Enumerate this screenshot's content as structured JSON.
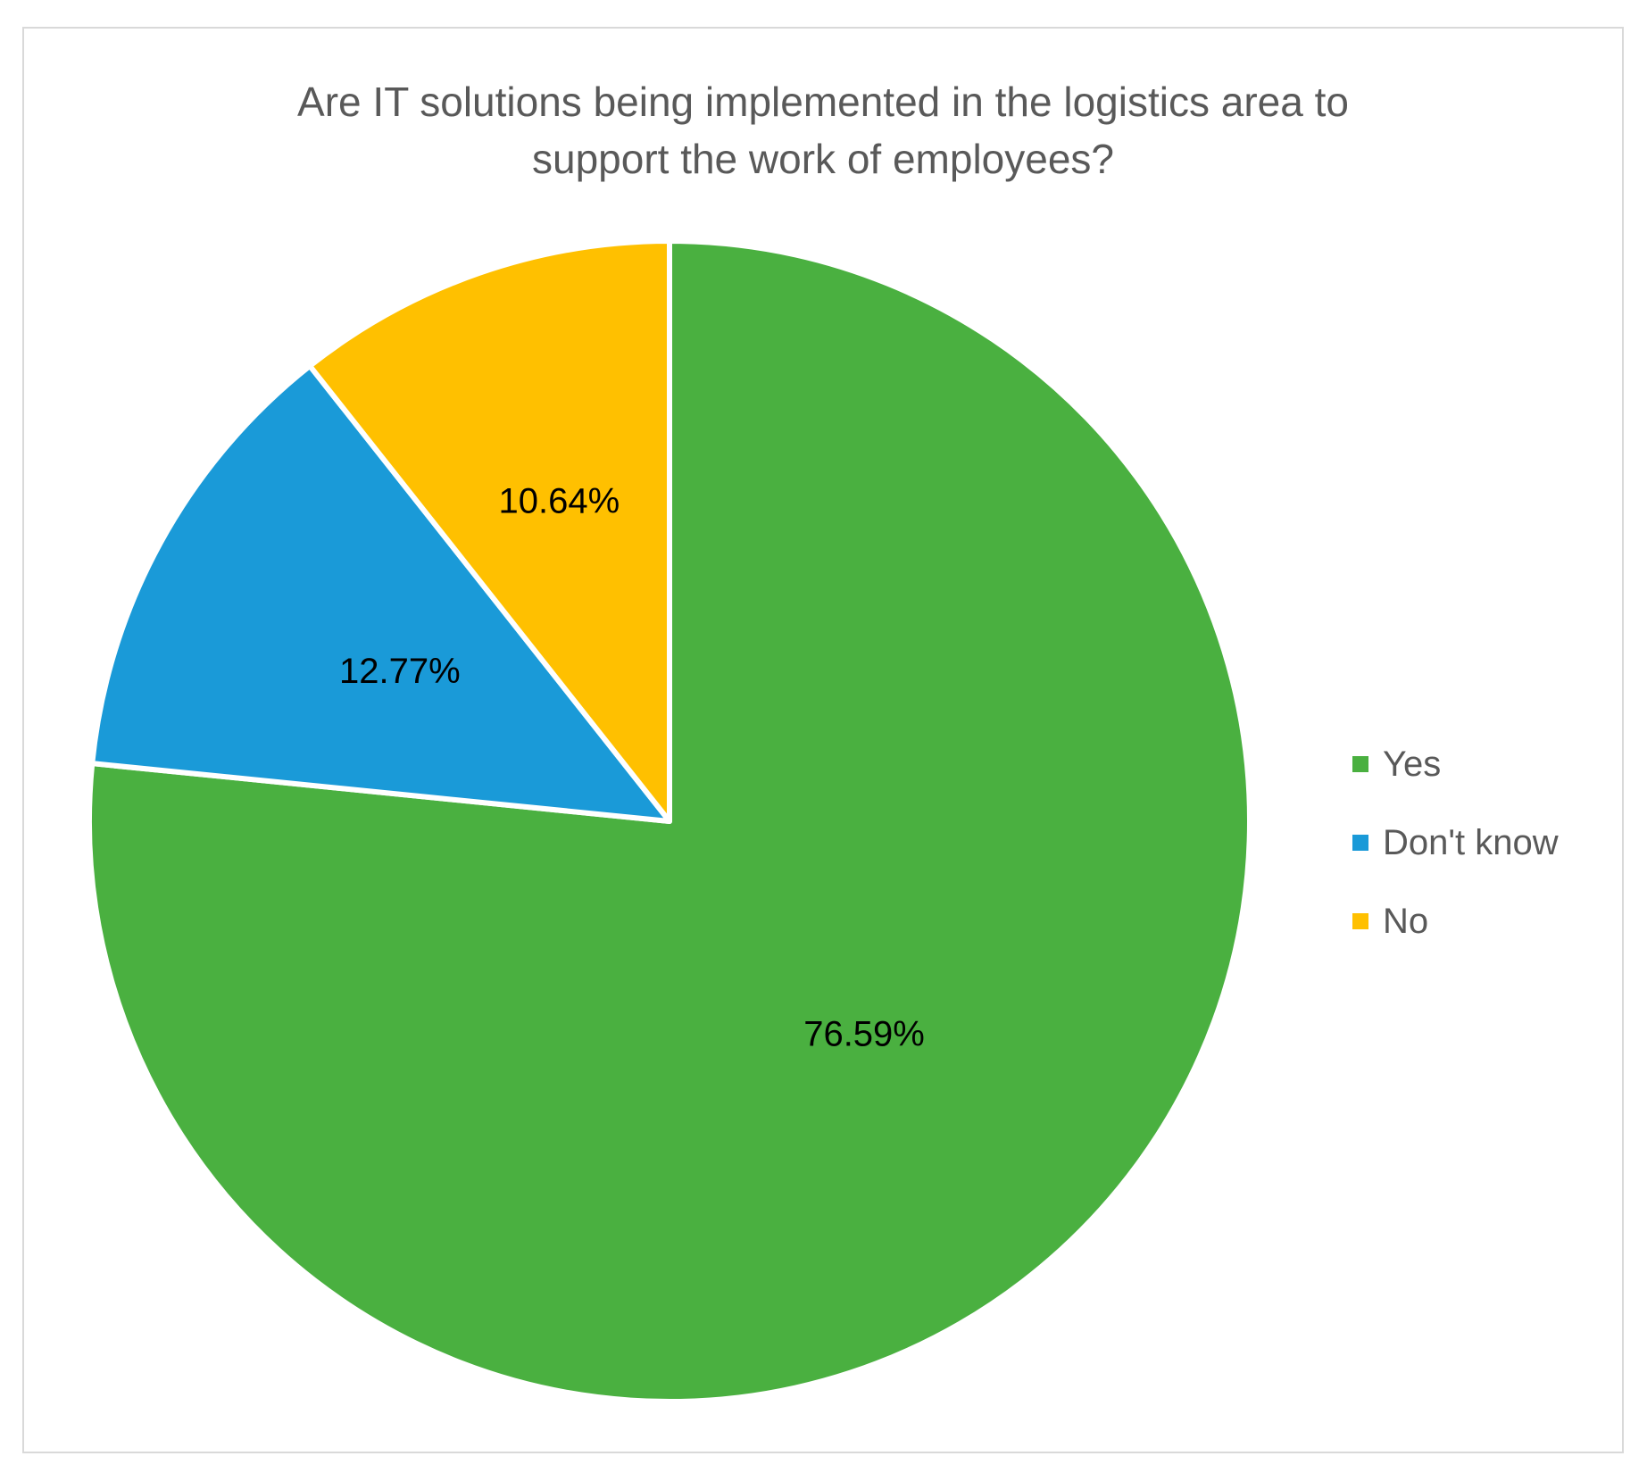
{
  "chart_data": {
    "type": "pie",
    "title": "Are IT solutions being implemented in the logistics area to\nsupport the work of employees?",
    "slices": [
      {
        "name": "Yes",
        "value": 76.59,
        "label": "76.59%",
        "color": "#4ab040"
      },
      {
        "name": "Don't know",
        "value": 12.77,
        "label": "12.77%",
        "color": "#1a9ad8"
      },
      {
        "name": "No",
        "value": 10.64,
        "label": "10.64%",
        "color": "#ffc000"
      }
    ],
    "start_angle": "12 o'clock, clockwise",
    "legend_position": "right"
  }
}
